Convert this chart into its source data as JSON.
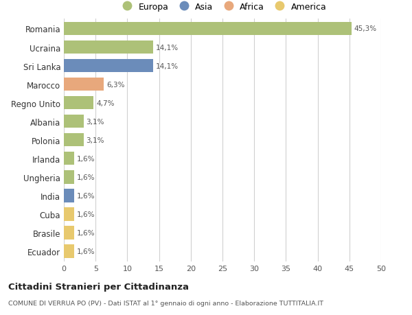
{
  "title": "Cittadini Stranieri per Cittadinanza",
  "subtitle": "COMUNE DI VERRUA PO (PV) - Dati ISTAT al 1° gennaio di ogni anno - Elaborazione TUTTITALIA.IT",
  "categories": [
    "Romania",
    "Ucraina",
    "Sri Lanka",
    "Marocco",
    "Regno Unito",
    "Albania",
    "Polonia",
    "Irlanda",
    "Ungheria",
    "India",
    "Cuba",
    "Brasile",
    "Ecuador"
  ],
  "values": [
    45.3,
    14.1,
    14.1,
    6.3,
    4.7,
    3.1,
    3.1,
    1.6,
    1.6,
    1.6,
    1.6,
    1.6,
    1.6
  ],
  "labels": [
    "45,3%",
    "14,1%",
    "14,1%",
    "6,3%",
    "4,7%",
    "3,1%",
    "3,1%",
    "1,6%",
    "1,6%",
    "1,6%",
    "1,6%",
    "1,6%",
    "1,6%"
  ],
  "bar_colors": [
    "#adc178",
    "#adc178",
    "#6b8cba",
    "#e8a87c",
    "#adc178",
    "#adc178",
    "#adc178",
    "#adc178",
    "#adc178",
    "#6b8cba",
    "#e8c96e",
    "#e8c96e",
    "#e8c96e"
  ],
  "legend": [
    {
      "label": "Europa",
      "color": "#adc178"
    },
    {
      "label": "Asia",
      "color": "#6b8cba"
    },
    {
      "label": "Africa",
      "color": "#e8a87c"
    },
    {
      "label": "America",
      "color": "#e8c96e"
    }
  ],
  "xlim": [
    0,
    50
  ],
  "xticks": [
    0,
    5,
    10,
    15,
    20,
    25,
    30,
    35,
    40,
    45,
    50
  ],
  "background_color": "#ffffff",
  "grid_color": "#d0d0d0",
  "bar_height": 0.72
}
